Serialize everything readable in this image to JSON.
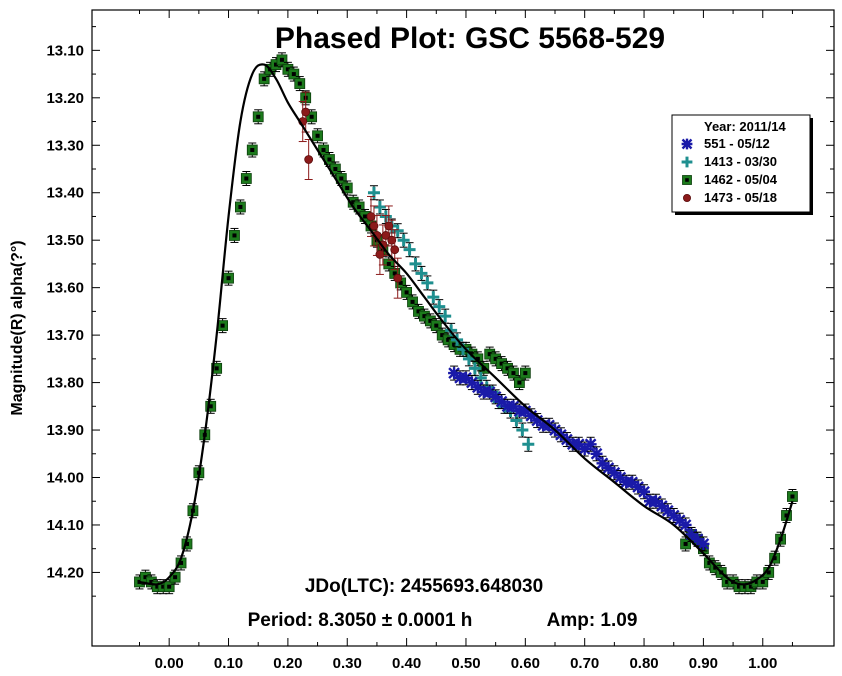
{
  "chart_data": {
    "type": "scatter",
    "title": "Phased Plot: GSC 5568-529",
    "xlabel": "",
    "ylabel": "Magnitude(R) alpha(?°)",
    "xlim": [
      -0.13,
      1.12
    ],
    "ylim": [
      14.355,
      13.015
    ],
    "y_inverted": true,
    "x_ticks": [
      "0.00",
      "0.10",
      "0.20",
      "0.30",
      "0.40",
      "0.50",
      "0.60",
      "0.70",
      "0.80",
      "0.90",
      "1.00"
    ],
    "y_ticks": [
      "13.10",
      "13.20",
      "13.30",
      "13.40",
      "13.50",
      "13.60",
      "13.70",
      "13.80",
      "13.90",
      "14.00",
      "14.10",
      "14.20"
    ],
    "info": {
      "jd": "JDo(LTC): 2455693.648030",
      "period": "Period: 8.3050 ± 0.0001 h",
      "amp": "Amp: 1.09"
    },
    "legend": {
      "position": "top-right",
      "header": "Year: 2011/14"
    },
    "fit_curve": {
      "color": "#000000",
      "x": [
        -0.05,
        -0.02,
        0.0,
        0.02,
        0.04,
        0.06,
        0.08,
        0.1,
        0.12,
        0.14,
        0.16,
        0.18,
        0.2,
        0.22,
        0.25,
        0.28,
        0.31,
        0.34,
        0.37,
        0.4,
        0.43,
        0.46,
        0.5,
        0.55,
        0.6,
        0.65,
        0.7,
        0.75,
        0.8,
        0.85,
        0.9,
        0.93,
        0.95,
        0.97,
        0.99,
        1.01,
        1.03,
        1.05
      ],
      "y": [
        14.22,
        14.225,
        14.21,
        14.17,
        14.07,
        13.91,
        13.7,
        13.45,
        13.25,
        13.15,
        13.13,
        13.16,
        13.21,
        13.25,
        13.31,
        13.37,
        13.43,
        13.48,
        13.53,
        13.57,
        13.62,
        13.67,
        13.73,
        13.79,
        13.85,
        13.9,
        13.96,
        14.01,
        14.06,
        14.1,
        14.16,
        14.2,
        14.22,
        14.225,
        14.215,
        14.19,
        14.13,
        14.05
      ]
    },
    "series": [
      {
        "name": "551 - 05/12",
        "marker": "asterisk",
        "color": "#1a1aa8",
        "x": [
          0.48,
          0.49,
          0.5,
          0.51,
          0.52,
          0.53,
          0.54,
          0.55,
          0.56,
          0.57,
          0.58,
          0.59,
          0.6,
          0.61,
          0.62,
          0.63,
          0.64,
          0.65,
          0.66,
          0.67,
          0.68,
          0.69,
          0.7,
          0.71,
          0.72,
          0.73,
          0.74,
          0.75,
          0.76,
          0.77,
          0.78,
          0.79,
          0.8,
          0.81,
          0.82,
          0.83,
          0.84,
          0.85,
          0.86,
          0.87,
          0.88,
          0.89,
          0.9
        ],
        "y": [
          13.78,
          13.79,
          13.79,
          13.8,
          13.81,
          13.82,
          13.82,
          13.83,
          13.84,
          13.85,
          13.85,
          13.86,
          13.86,
          13.87,
          13.88,
          13.89,
          13.89,
          13.9,
          13.91,
          13.92,
          13.93,
          13.93,
          13.94,
          13.93,
          13.95,
          13.97,
          13.98,
          13.99,
          14.0,
          14.01,
          14.01,
          14.02,
          14.03,
          14.05,
          14.05,
          14.06,
          14.07,
          14.08,
          14.09,
          14.1,
          14.12,
          14.13,
          14.14
        ]
      },
      {
        "name": "1413 - 03/30",
        "marker": "plus",
        "color": "#1f8f8f",
        "x": [
          0.345,
          0.355,
          0.365,
          0.375,
          0.385,
          0.395,
          0.405,
          0.415,
          0.425,
          0.435,
          0.445,
          0.455,
          0.465,
          0.475,
          0.485,
          0.495,
          0.505,
          0.515,
          0.525,
          0.535,
          0.545,
          0.555,
          0.565,
          0.575,
          0.585,
          0.595,
          0.605
        ],
        "y": [
          13.4,
          13.43,
          13.45,
          13.47,
          13.48,
          13.5,
          13.52,
          13.55,
          13.57,
          13.59,
          13.62,
          13.64,
          13.66,
          13.69,
          13.71,
          13.73,
          13.75,
          13.77,
          13.79,
          13.81,
          13.82,
          13.84,
          13.85,
          13.86,
          13.88,
          13.9,
          13.93
        ]
      },
      {
        "name": "1462 - 05/04",
        "marker": "square",
        "color": "#1c7a1c",
        "x": [
          -0.05,
          -0.04,
          -0.03,
          -0.02,
          -0.01,
          0.0,
          0.01,
          0.02,
          0.03,
          0.04,
          0.05,
          0.06,
          0.07,
          0.08,
          0.09,
          0.1,
          0.11,
          0.12,
          0.13,
          0.14,
          0.15,
          0.16,
          0.17,
          0.18,
          0.19,
          0.2,
          0.21,
          0.22,
          0.23,
          0.24,
          0.25,
          0.26,
          0.27,
          0.28,
          0.29,
          0.3,
          0.31,
          0.32,
          0.33,
          0.34,
          0.35,
          0.36,
          0.37,
          0.38,
          0.39,
          0.4,
          0.41,
          0.42,
          0.43,
          0.44,
          0.45,
          0.46,
          0.47,
          0.48,
          0.49,
          0.5,
          0.51,
          0.52,
          0.53,
          0.54,
          0.55,
          0.56,
          0.57,
          0.58,
          0.59,
          0.6,
          0.87,
          0.88,
          0.89,
          0.9,
          0.91,
          0.92,
          0.93,
          0.94,
          0.95,
          0.96,
          0.97,
          0.98,
          0.99,
          1.0,
          1.01,
          1.02,
          1.03,
          1.04,
          1.05
        ],
        "y": [
          14.22,
          14.21,
          14.22,
          14.23,
          14.23,
          14.23,
          14.21,
          14.18,
          14.14,
          14.07,
          13.99,
          13.91,
          13.85,
          13.77,
          13.68,
          13.58,
          13.49,
          13.43,
          13.37,
          13.31,
          13.24,
          13.16,
          13.14,
          13.13,
          13.12,
          13.14,
          13.15,
          13.17,
          13.2,
          13.24,
          13.28,
          13.31,
          13.33,
          13.35,
          13.37,
          13.39,
          13.42,
          13.43,
          13.45,
          13.47,
          13.5,
          13.52,
          13.55,
          13.57,
          13.59,
          13.61,
          13.63,
          13.65,
          13.66,
          13.67,
          13.68,
          13.7,
          13.71,
          13.72,
          13.73,
          13.73,
          13.74,
          13.75,
          13.77,
          13.74,
          13.75,
          13.76,
          13.77,
          13.78,
          13.8,
          13.78,
          14.14,
          14.12,
          14.13,
          14.15,
          14.18,
          14.19,
          14.2,
          14.22,
          14.22,
          14.23,
          14.23,
          14.23,
          14.22,
          14.22,
          14.2,
          14.17,
          14.13,
          14.08,
          14.04
        ]
      },
      {
        "name": "1473 - 05/18",
        "marker": "circle",
        "color": "#8b1a1a",
        "x": [
          0.225,
          0.23,
          0.235,
          0.34,
          0.345,
          0.35,
          0.355,
          0.36,
          0.365,
          0.37,
          0.375,
          0.38,
          0.385
        ],
        "y": [
          13.25,
          13.23,
          13.33,
          13.45,
          13.47,
          13.49,
          13.53,
          13.51,
          13.49,
          13.47,
          13.5,
          13.52,
          13.58
        ]
      }
    ]
  }
}
